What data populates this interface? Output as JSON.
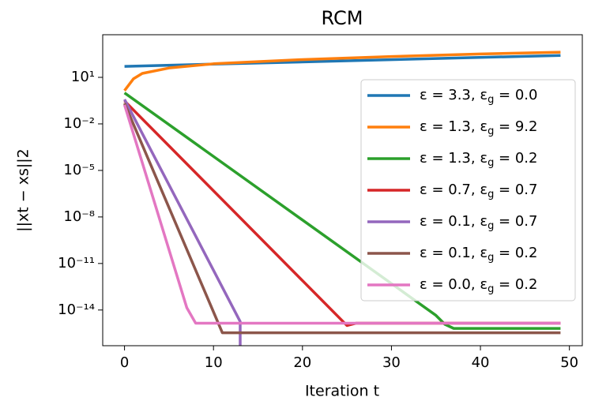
{
  "chart_data": {
    "type": "line",
    "title": "RCM",
    "x_label": "Iteration t",
    "y_label": "||xt − xs||2",
    "xlim": [
      -2.45,
      51.45
    ],
    "xticks": [
      0,
      10,
      20,
      30,
      40,
      50
    ],
    "ylim": [
      5e-17,
      5600
    ],
    "log_y": true,
    "yticks": [
      {
        "value": 10,
        "label": "10¹"
      },
      {
        "value": 0.01,
        "label": "10⁻²"
      },
      {
        "value": 1e-05,
        "label": "10⁻⁵"
      },
      {
        "value": 1e-08,
        "label": "10⁻⁸"
      },
      {
        "value": 1e-11,
        "label": "10⁻¹¹"
      },
      {
        "value": 1e-14,
        "label": "10⁻¹⁴"
      }
    ],
    "legend": "center right",
    "series": [
      {
        "name": "ε = 3.3, εg = 0.0",
        "color": "#1f77b4",
        "x": [
          0,
          49
        ],
        "values": [
          51,
          260
        ]
      },
      {
        "name": "ε = 1.3, εg = 9.2",
        "color": "#ff7f0e",
        "x": [
          0,
          1,
          2,
          5,
          10,
          20,
          30,
          40,
          49
        ],
        "values": [
          1.4,
          8,
          18,
          40,
          75,
          140,
          220,
          320,
          420
        ]
      },
      {
        "name": "ε = 1.3, εg = 0.2",
        "color": "#2ca02c",
        "x": [
          0,
          35,
          36,
          37,
          49
        ],
        "values": [
          1,
          4.5e-15,
          1.2e-15,
          6.5e-16,
          6.5e-16
        ]
      },
      {
        "name": "ε = 0.7, εg = 0.7",
        "color": "#d62728",
        "x": [
          0,
          25,
          26,
          49
        ],
        "values": [
          0.3,
          1e-15,
          1.4e-15,
          1.4e-15
        ]
      },
      {
        "name": "ε = 0.1, εg = 0.7",
        "color": "#9467bd",
        "x": [
          0,
          13,
          13
        ],
        "values": [
          0.38,
          1.8e-15,
          1e-17
        ]
      },
      {
        "name": "ε = 0.1, εg = 0.2",
        "color": "#8c564b",
        "x": [
          0,
          11,
          49
        ],
        "values": [
          0.21,
          3.4e-16,
          3.4e-16
        ]
      },
      {
        "name": "ε = 0.0, εg = 0.2",
        "color": "#e377c2",
        "x": [
          0,
          7,
          8,
          49
        ],
        "values": [
          0.17,
          1.4e-14,
          1.4e-15,
          1.4e-15
        ]
      }
    ]
  }
}
